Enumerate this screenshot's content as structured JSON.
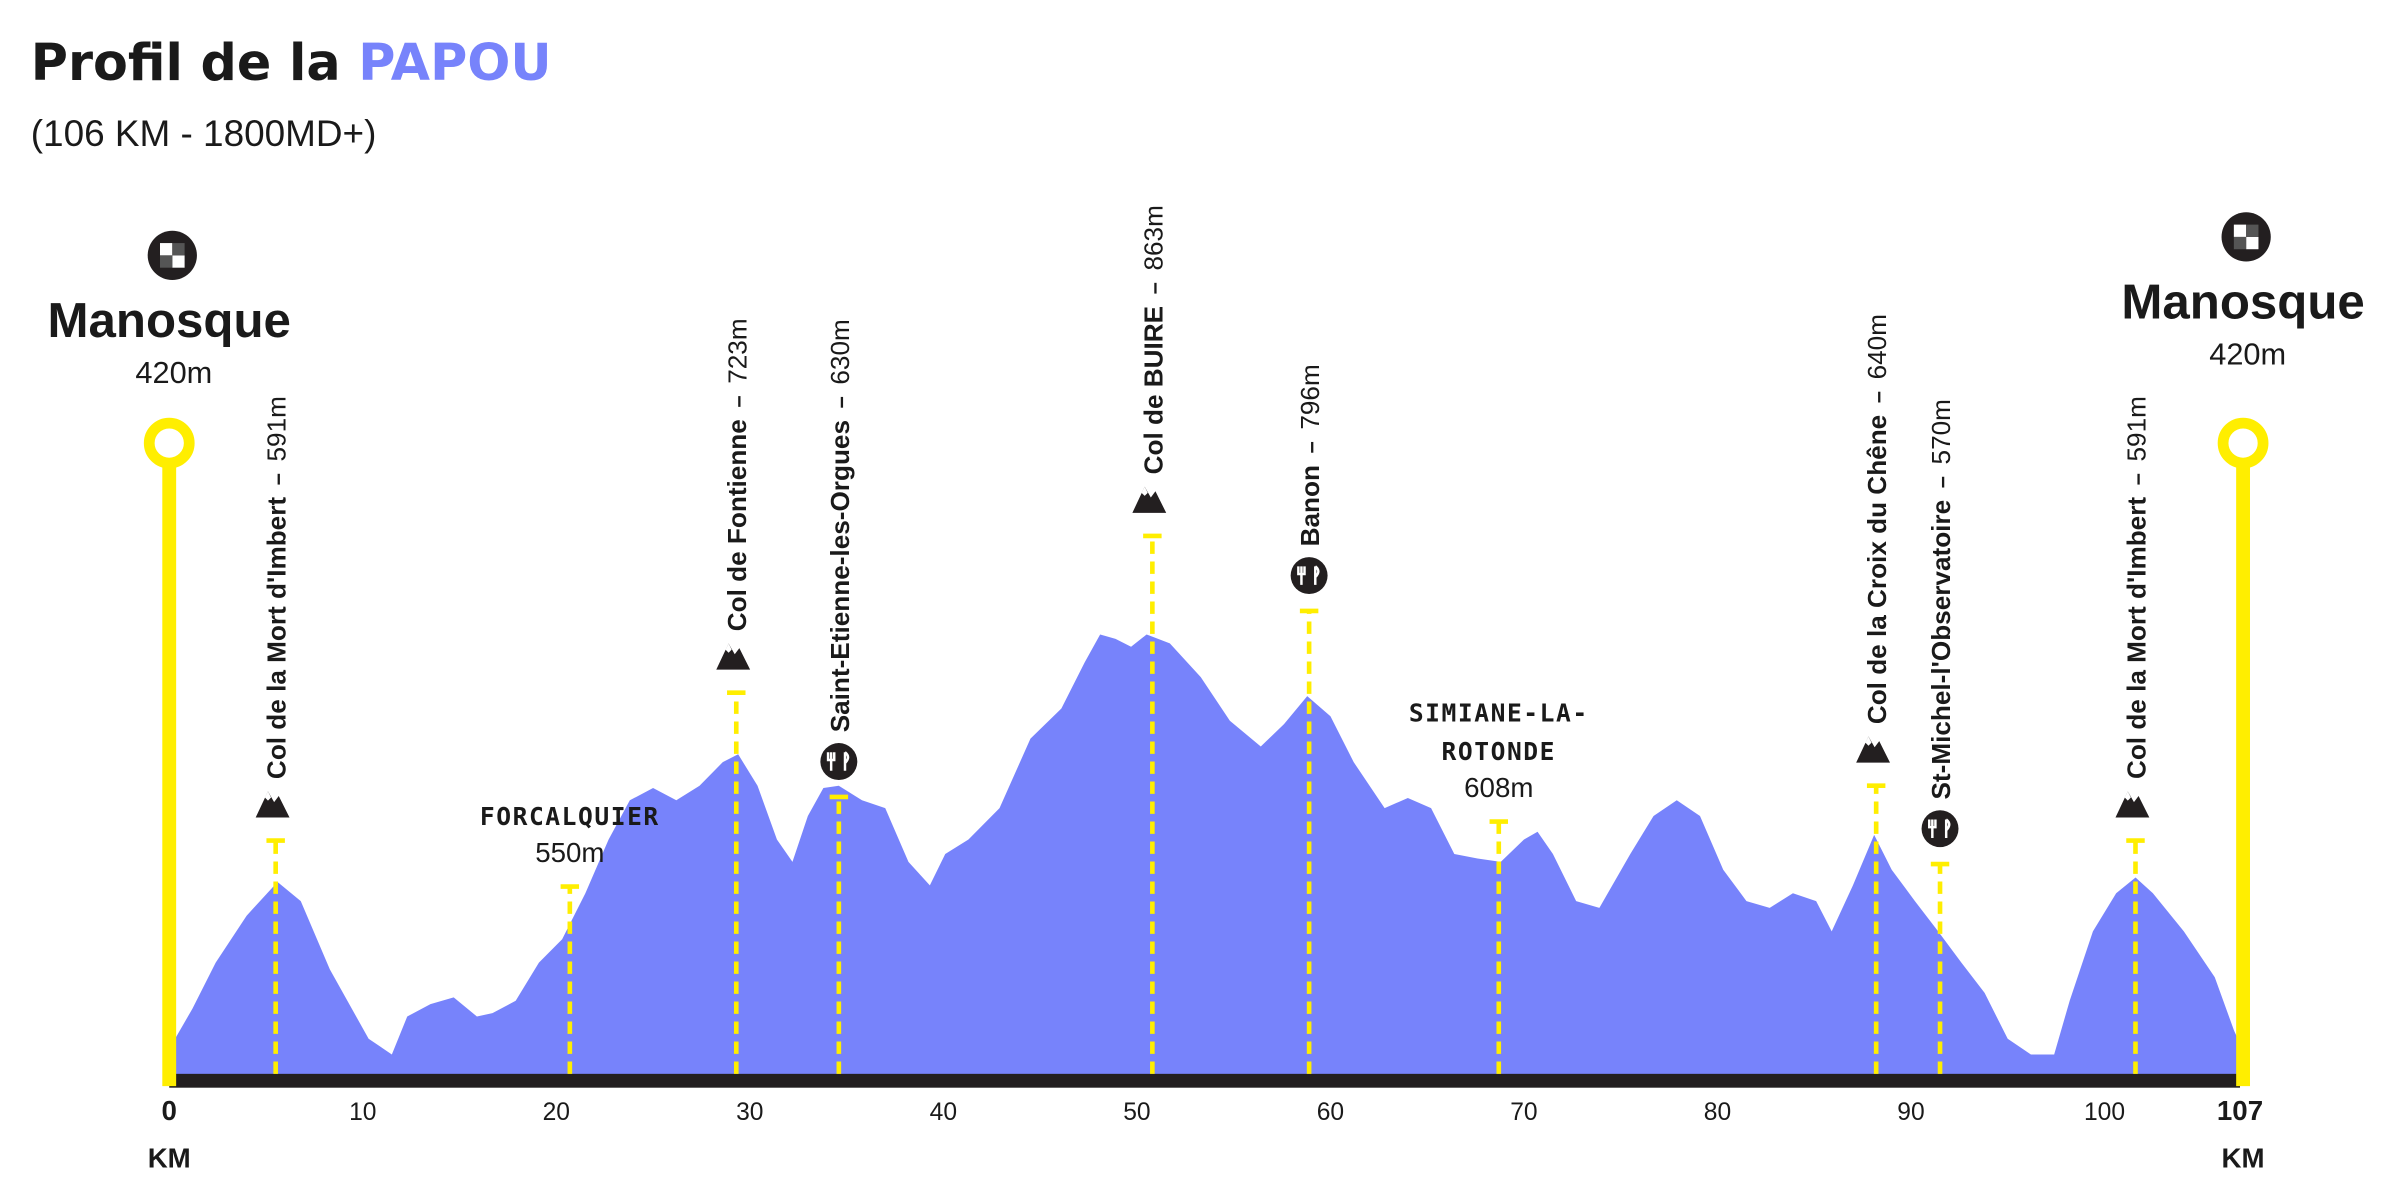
{
  "chart_data": {
    "type": "area",
    "title": "Profil de la",
    "title_highlight": "PAPOU",
    "subtitle": "(106 KM - 1800MD+)",
    "color": "#7783fb",
    "highlight_color": "#7783fb",
    "marker_color": "#ffee00",
    "x_unit": "KM",
    "xlim": [
      0,
      107
    ],
    "ylim": [
      380,
      1200
    ],
    "xticks": [
      0,
      10,
      20,
      30,
      40,
      50,
      60,
      70,
      80,
      90,
      100,
      107
    ],
    "x": [
      0,
      1.2,
      2.4,
      4.0,
      5.6,
      6.8,
      8.3,
      10.3,
      11.5,
      12.3,
      13.5,
      14.7,
      15.9,
      16.7,
      17.9,
      19.1,
      20.3,
      21.5,
      22.7,
      23.8,
      25.0,
      26.2,
      27.4,
      28.6,
      29.4,
      30.4,
      31.4,
      32.2,
      33.0,
      33.8,
      34.6,
      35.8,
      37.0,
      38.2,
      39.3,
      40.1,
      41.3,
      42.9,
      44.5,
      46.1,
      47.3,
      48.1,
      48.9,
      49.7,
      50.5,
      51.7,
      53.3,
      54.8,
      56.4,
      57.6,
      58.8,
      60.0,
      61.2,
      62.8,
      64.0,
      65.2,
      66.4,
      67.6,
      68.8,
      70.0,
      70.7,
      71.5,
      72.7,
      73.9,
      75.5,
      76.7,
      77.9,
      79.1,
      80.3,
      81.5,
      82.7,
      83.9,
      85.1,
      85.9,
      87.0,
      88.1,
      89.0,
      90.2,
      91.4,
      92.6,
      93.8,
      95.0,
      96.2,
      97.4,
      98.2,
      99.4,
      100.6,
      101.6,
      102.5,
      104.1,
      105.7,
      106.7,
      107
    ],
    "values": [
      405,
      441,
      482,
      524,
      554,
      537,
      476,
      414,
      400,
      434,
      445,
      451,
      434,
      437,
      448,
      482,
      503,
      544,
      592,
      627,
      638,
      627,
      640,
      661,
      668,
      640,
      592,
      572,
      613,
      638,
      640,
      627,
      620,
      572,
      551,
      579,
      592,
      620,
      682,
      709,
      750,
      775,
      771,
      764,
      775,
      767,
      737,
      698,
      675,
      695,
      720,
      702,
      661,
      620,
      629,
      620,
      579,
      575,
      572,
      592,
      599,
      579,
      537,
      531,
      579,
      613,
      627,
      613,
      565,
      537,
      531,
      544,
      537,
      510,
      551,
      596,
      565,
      537,
      510,
      482,
      455,
      414,
      400,
      400,
      448,
      510,
      544,
      558,
      544,
      510,
      469,
      421,
      410
    ],
    "endpoints": [
      {
        "x": 0,
        "name": "Manosque",
        "elevation": 420,
        "value_label": "420m"
      },
      {
        "x": 107,
        "name": "Manosque",
        "elevation": 420,
        "value_label": "420m"
      }
    ],
    "waypoints": [
      {
        "x": 5.5,
        "elevation": 591,
        "name": "Col de la Mort d'Imbert",
        "value_label": "591m",
        "icon": "mountain"
      },
      {
        "x": 20.7,
        "elevation": 550,
        "lines": [
          "FORCALQUIER"
        ],
        "value_label": "550m"
      },
      {
        "x": 29.3,
        "elevation": 723,
        "name": "Col de Fontienne",
        "value_label": "723m",
        "icon": "mountain"
      },
      {
        "x": 34.6,
        "elevation": 630,
        "name": "Saint-Etienne-les-Orgues",
        "value_label": "630m",
        "icon": "food"
      },
      {
        "x": 50.8,
        "elevation": 863,
        "name": "Col de BUIRE",
        "value_label": "863m",
        "icon": "mountain"
      },
      {
        "x": 58.9,
        "elevation": 796,
        "name": "Banon",
        "value_label": "796m",
        "icon": "food"
      },
      {
        "x": 68.7,
        "elevation": 608,
        "lines": [
          "SIMIANE-LA-",
          "ROTONDE"
        ],
        "value_label": "608m"
      },
      {
        "x": 88.2,
        "elevation": 640,
        "name": "Col de la Croix du Chêne",
        "value_label": "640m",
        "icon": "mountain"
      },
      {
        "x": 91.5,
        "elevation": 570,
        "name": "St-Michel-l'Observatoire",
        "value_label": "570m",
        "icon": "food"
      },
      {
        "x": 101.6,
        "elevation": 591,
        "name": "Col de la Mort d'Imbert",
        "value_label": "591m",
        "icon": "mountain"
      }
    ]
  }
}
